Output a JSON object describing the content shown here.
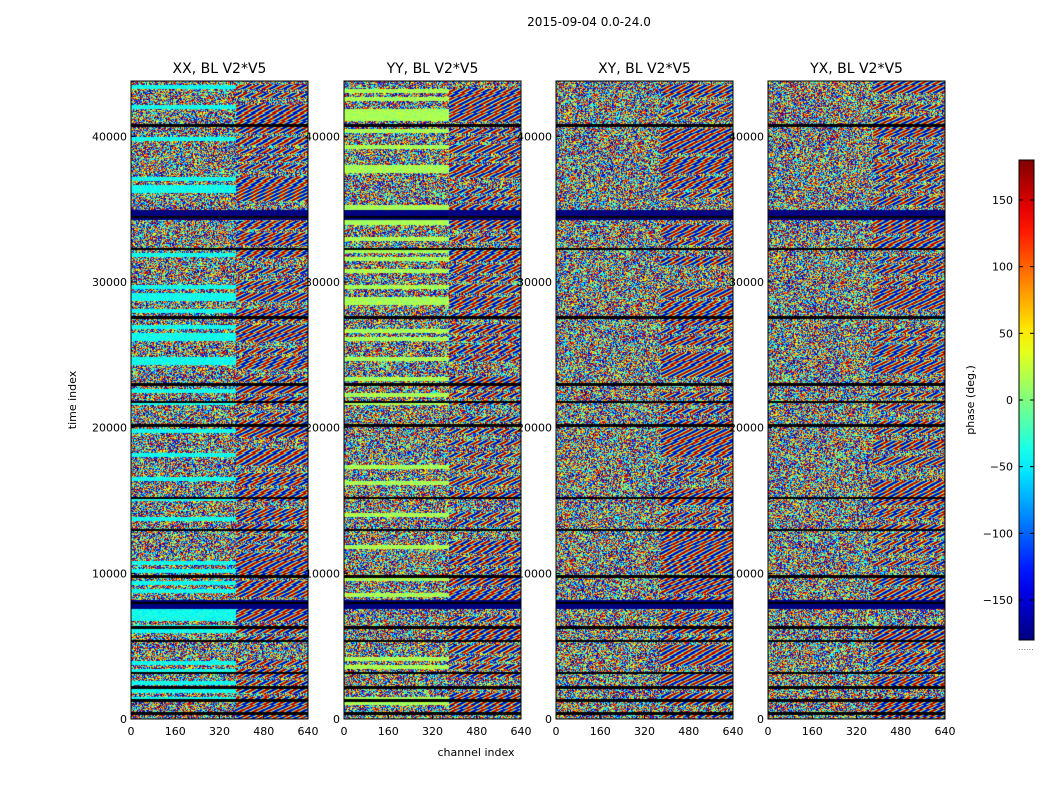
{
  "chart_data": {
    "type": "heatmap",
    "suptitle": "2015-09-04 0.0-24.0",
    "xlabel": "channel index",
    "ylabel": "time index",
    "colorbar": {
      "label": "phase (deg.)",
      "range": [
        -180,
        180
      ],
      "ticks": [
        -150,
        -100,
        -50,
        0,
        50,
        100,
        150
      ],
      "tick_labels": [
        "−150",
        "−100",
        "−50",
        "0",
        "50",
        "100",
        "150"
      ],
      "colormap": "jet",
      "footer": "......"
    },
    "x_range": [
      0,
      640
    ],
    "y_range": [
      0,
      43800
    ],
    "x_ticks": [
      0,
      160,
      320,
      480,
      640
    ],
    "x_tick_labels": [
      "0",
      "160",
      "320",
      "480",
      "640"
    ],
    "y_ticks": [
      0,
      10000,
      20000,
      30000,
      40000
    ],
    "y_tick_labels": [
      "0",
      "10000",
      "20000",
      "30000",
      "40000"
    ],
    "panels": [
      {
        "title": "XX, BL V2*V5",
        "pol": "XX",
        "base_phase": -40
      },
      {
        "title": "YY, BL V2*V5",
        "pol": "YY",
        "base_phase": 15
      },
      {
        "title": "XY, BL V2*V5",
        "pol": "XY",
        "base_phase": -60
      },
      {
        "title": "YX, BL V2*V5",
        "pol": "YX",
        "base_phase": -60
      }
    ],
    "gap_times": [
      400,
      1300,
      2200,
      3200,
      5400,
      6300,
      8000,
      9800,
      13000,
      15200,
      20200,
      21800,
      23000,
      27600,
      32300,
      34500,
      40800
    ],
    "noise_free_band": [
      7600,
      8200
    ],
    "fringe_start_channel": 380
  }
}
